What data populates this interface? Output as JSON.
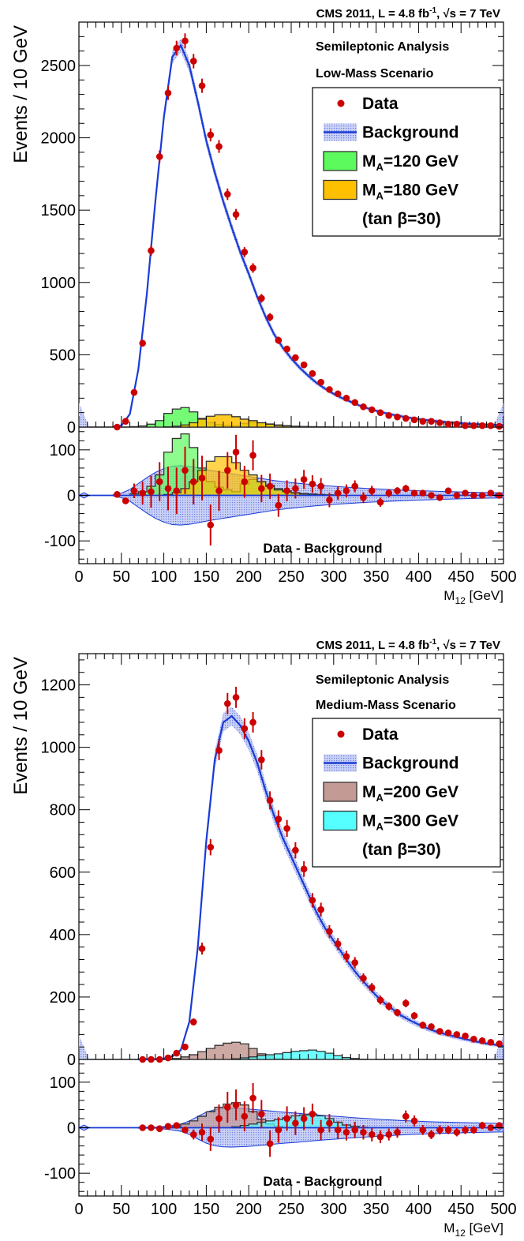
{
  "chart_data": [
    {
      "type": "line",
      "header": "CMS 2011, L = 4.8 fb",
      "header_sup": "-1",
      "header_sqrt": ", √s = 7 TeV",
      "analysis": "Semileptonic Analysis",
      "scenario": "Low-Mass Scenario",
      "ylabel": "Events / 10 GeV",
      "xlabel": "M",
      "xlabel_sub": "12",
      "xlabel_unit": " [GeV]",
      "residual_label": "Data - Background",
      "xlim": [
        0,
        500
      ],
      "ylim": [
        0,
        2800
      ],
      "residual_ylim": [
        -150,
        150
      ],
      "x_ticks": [
        "0",
        "50",
        "100",
        "150",
        "200",
        "250",
        "300",
        "350",
        "400",
        "450",
        "500"
      ],
      "y_ticks": [
        "0",
        "500",
        "1000",
        "1500",
        "2000",
        "2500"
      ],
      "residual_y_ticks": [
        "-100",
        "0",
        "100"
      ],
      "legend": {
        "data": "Data",
        "background": "Background",
        "signal1": "M",
        "signal1_sub": "A",
        "signal1_rest": "=120 GeV",
        "signal2": "M",
        "signal2_sub": "A",
        "signal2_rest": "=180 GeV",
        "tanb": "(tan β=30)"
      },
      "colors": {
        "data": "#cc0000",
        "background": "#1a3bd6",
        "band": "#9aa8ec",
        "signal1": "#5dfa5d",
        "signal2": "#ffc000"
      },
      "data_x": [
        45,
        55,
        65,
        75,
        85,
        95,
        105,
        115,
        125,
        135,
        145,
        155,
        165,
        175,
        185,
        195,
        205,
        215,
        225,
        235,
        245,
        255,
        265,
        275,
        285,
        295,
        305,
        315,
        325,
        335,
        345,
        355,
        365,
        375,
        385,
        395,
        405,
        415,
        425,
        435,
        445,
        455,
        465,
        475,
        485,
        495
      ],
      "data_y": [
        0,
        40,
        240,
        580,
        1220,
        1870,
        2310,
        2620,
        2670,
        2530,
        2360,
        2020,
        1940,
        1610,
        1470,
        1210,
        1100,
        890,
        760,
        600,
        540,
        480,
        430,
        370,
        310,
        260,
        230,
        200,
        170,
        140,
        120,
        100,
        80,
        70,
        60,
        50,
        40,
        40,
        30,
        20,
        20,
        10,
        10,
        10,
        10,
        5
      ],
      "data_err": [
        2,
        6,
        16,
        24,
        35,
        43,
        48,
        51,
        52,
        50,
        49,
        45,
        44,
        40,
        38,
        35,
        33,
        30,
        28,
        25,
        23,
        22,
        21,
        19,
        18,
        16,
        15,
        14,
        13,
        12,
        11,
        10,
        9,
        8,
        8,
        7,
        6,
        6,
        5,
        4,
        4,
        3,
        3,
        3,
        3,
        2
      ],
      "background_x": [
        40,
        50,
        60,
        70,
        80,
        90,
        100,
        110,
        120,
        130,
        140,
        150,
        160,
        170,
        180,
        190,
        200,
        210,
        220,
        230,
        240,
        250,
        260,
        270,
        280,
        290,
        300,
        310,
        320,
        330,
        340,
        350,
        360,
        370,
        380,
        390,
        400,
        410,
        420,
        430,
        440,
        450,
        460,
        470,
        480,
        490,
        500
      ],
      "background_y": [
        0,
        10,
        90,
        400,
        920,
        1560,
        2140,
        2560,
        2640,
        2500,
        2250,
        1980,
        1760,
        1560,
        1380,
        1210,
        1060,
        900,
        760,
        640,
        550,
        475,
        410,
        355,
        305,
        265,
        230,
        200,
        175,
        150,
        130,
        113,
        98,
        85,
        74,
        64,
        55,
        48,
        42,
        36,
        31,
        27,
        23,
        20,
        17,
        15,
        13
      ],
      "signal1_x": [
        60,
        70,
        80,
        90,
        100,
        110,
        120,
        130,
        140,
        150,
        160,
        170,
        180,
        190,
        200,
        210,
        220,
        230,
        240,
        250,
        260,
        270,
        280,
        290,
        300
      ],
      "signal1_y": [
        3,
        8,
        20,
        45,
        95,
        125,
        135,
        105,
        60,
        30,
        18,
        12,
        8,
        25,
        35,
        30,
        22,
        15,
        10,
        6,
        4,
        3,
        2,
        1,
        0
      ],
      "signal2_x": [
        100,
        110,
        120,
        130,
        140,
        150,
        160,
        170,
        180,
        190,
        200,
        210,
        220,
        230,
        240,
        250,
        260,
        270,
        280,
        290,
        300
      ],
      "signal2_y": [
        2,
        6,
        15,
        30,
        55,
        75,
        85,
        85,
        72,
        55,
        45,
        30,
        20,
        12,
        8,
        5,
        3,
        2,
        1,
        1,
        0
      ],
      "residual_x": [
        45,
        55,
        65,
        75,
        85,
        95,
        105,
        115,
        125,
        135,
        145,
        155,
        165,
        175,
        185,
        195,
        205,
        215,
        225,
        235,
        245,
        255,
        265,
        275,
        285,
        295,
        305,
        315,
        325,
        335,
        345,
        355,
        365,
        375,
        385,
        395,
        405,
        415,
        425,
        435,
        445,
        455,
        465,
        475,
        485,
        495
      ],
      "residual_y": [
        2,
        -12,
        10,
        5,
        8,
        30,
        15,
        10,
        55,
        30,
        38,
        -65,
        10,
        55,
        95,
        30,
        88,
        15,
        20,
        -22,
        10,
        15,
        35,
        25,
        20,
        -10,
        5,
        10,
        20,
        -5,
        10,
        -15,
        5,
        10,
        15,
        5,
        5,
        0,
        -5,
        10,
        0,
        5,
        0,
        0,
        5,
        0
      ],
      "residual_err": [
        2,
        5,
        16,
        25,
        35,
        43,
        48,
        51,
        52,
        50,
        49,
        45,
        44,
        40,
        38,
        35,
        33,
        30,
        28,
        25,
        23,
        22,
        21,
        19,
        18,
        16,
        15,
        14,
        13,
        12,
        11,
        10,
        9,
        8,
        8,
        7,
        6,
        6,
        5,
        4,
        4,
        3,
        3,
        3,
        3,
        2
      ]
    },
    {
      "type": "line",
      "header": "CMS 2011, L = 4.8 fb",
      "header_sup": "-1",
      "header_sqrt": ", √s = 7 TeV",
      "analysis": "Semileptonic Analysis",
      "scenario": "Medium-Mass Scenario",
      "ylabel": "Events / 10 GeV",
      "xlabel": "M",
      "xlabel_sub": "12",
      "xlabel_unit": " [GeV]",
      "residual_label": "Data - Background",
      "xlim": [
        0,
        500
      ],
      "ylim": [
        0,
        1300
      ],
      "residual_ylim": [
        -150,
        150
      ],
      "x_ticks": [
        "0",
        "50",
        "100",
        "150",
        "200",
        "250",
        "300",
        "350",
        "400",
        "450",
        "500"
      ],
      "y_ticks": [
        "0",
        "200",
        "400",
        "600",
        "800",
        "1000",
        "1200"
      ],
      "residual_y_ticks": [
        "-100",
        "0",
        "100"
      ],
      "legend": {
        "data": "Data",
        "background": "Background",
        "signal1": "M",
        "signal1_sub": "A",
        "signal1_rest": "=200 GeV",
        "signal2": "M",
        "signal2_sub": "A",
        "signal2_rest": "=300 GeV",
        "tanb": "(tan β=30)"
      },
      "colors": {
        "data": "#cc0000",
        "background": "#1a3bd6",
        "band": "#9aa8ec",
        "signal1": "#c49a94",
        "signal2": "#55ffff"
      },
      "data_x": [
        75,
        85,
        95,
        105,
        115,
        125,
        135,
        145,
        155,
        165,
        175,
        185,
        195,
        205,
        215,
        225,
        235,
        245,
        255,
        265,
        275,
        285,
        295,
        305,
        315,
        325,
        335,
        345,
        355,
        365,
        375,
        385,
        395,
        405,
        415,
        425,
        435,
        445,
        455,
        465,
        475,
        485,
        495
      ],
      "data_y": [
        0,
        0,
        0,
        5,
        20,
        40,
        120,
        355,
        680,
        990,
        1140,
        1160,
        1060,
        1080,
        960,
        830,
        770,
        740,
        670,
        610,
        510,
        480,
        410,
        370,
        330,
        310,
        260,
        230,
        190,
        170,
        150,
        180,
        140,
        110,
        105,
        90,
        85,
        80,
        75,
        65,
        60,
        55,
        50
      ],
      "data_err": [
        1,
        1,
        1,
        3,
        5,
        7,
        11,
        19,
        26,
        31,
        34,
        34,
        33,
        33,
        31,
        29,
        28,
        27,
        26,
        25,
        23,
        22,
        20,
        19,
        18,
        18,
        16,
        15,
        14,
        13,
        12,
        13,
        12,
        11,
        10,
        10,
        9,
        9,
        9,
        8,
        8,
        7,
        7
      ],
      "background_x": [
        70,
        80,
        90,
        100,
        110,
        120,
        130,
        140,
        150,
        160,
        170,
        180,
        190,
        200,
        210,
        220,
        230,
        240,
        250,
        260,
        270,
        280,
        290,
        300,
        310,
        320,
        330,
        340,
        350,
        360,
        370,
        380,
        390,
        400,
        410,
        420,
        430,
        440,
        450,
        460,
        470,
        480,
        490,
        500
      ],
      "background_y": [
        0,
        0,
        0,
        2,
        10,
        30,
        120,
        360,
        700,
        960,
        1080,
        1100,
        1070,
        1020,
        950,
        860,
        780,
        710,
        650,
        590,
        530,
        470,
        420,
        380,
        340,
        300,
        265,
        235,
        205,
        180,
        160,
        140,
        125,
        112,
        100,
        90,
        82,
        75,
        68,
        62,
        56,
        51,
        47,
        43
      ],
      "signal1_x": [
        110,
        120,
        130,
        140,
        150,
        160,
        170,
        180,
        190,
        200,
        210,
        220,
        230,
        240,
        250
      ],
      "signal1_y": [
        3,
        8,
        15,
        25,
        35,
        45,
        52,
        55,
        50,
        35,
        18,
        8,
        3,
        1,
        0
      ],
      "signal2_x": [
        180,
        190,
        200,
        210,
        220,
        230,
        240,
        250,
        260,
        270,
        280,
        290,
        300,
        310,
        320,
        330,
        340
      ],
      "signal2_y": [
        2,
        5,
        8,
        12,
        15,
        18,
        22,
        26,
        28,
        30,
        26,
        20,
        12,
        6,
        3,
        1,
        0
      ],
      "residual_x": [
        75,
        85,
        95,
        105,
        115,
        125,
        135,
        145,
        155,
        165,
        175,
        185,
        195,
        205,
        215,
        225,
        235,
        245,
        255,
        265,
        275,
        285,
        295,
        305,
        315,
        325,
        335,
        345,
        355,
        365,
        375,
        385,
        395,
        405,
        415,
        425,
        435,
        445,
        455,
        465,
        475,
        485,
        495
      ],
      "residual_y": [
        0,
        0,
        -2,
        3,
        5,
        -5,
        -15,
        -10,
        -25,
        20,
        45,
        50,
        25,
        65,
        30,
        -35,
        -5,
        20,
        10,
        20,
        30,
        -5,
        10,
        -5,
        -10,
        -5,
        -10,
        -15,
        -20,
        -15,
        -10,
        25,
        15,
        -5,
        -15,
        -5,
        -5,
        -10,
        -5,
        -5,
        5,
        0,
        5
      ],
      "residual_err": [
        1,
        1,
        1,
        3,
        5,
        7,
        11,
        19,
        26,
        31,
        34,
        34,
        33,
        33,
        31,
        29,
        28,
        27,
        26,
        25,
        23,
        22,
        20,
        19,
        18,
        18,
        16,
        15,
        14,
        13,
        12,
        13,
        12,
        11,
        10,
        10,
        9,
        9,
        9,
        8,
        8,
        7,
        7
      ]
    }
  ]
}
